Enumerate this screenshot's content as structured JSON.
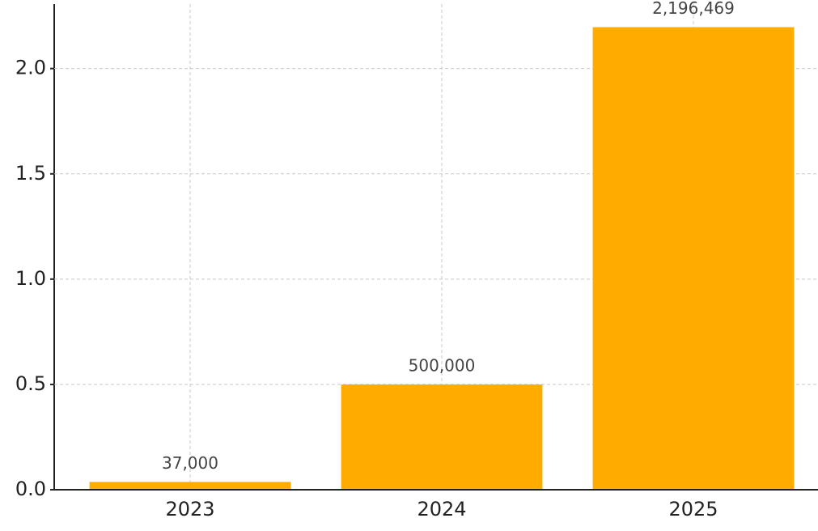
{
  "chart_data": {
    "type": "bar",
    "categories": [
      "2023",
      "2024",
      "2025"
    ],
    "values": [
      37000,
      500000,
      2196469
    ],
    "value_labels": [
      "37,000",
      "500,000",
      "2,196,469"
    ],
    "color": "#ffab00",
    "ylim": [
      0,
      2306292
    ],
    "yticks": [
      {
        "value": 0,
        "label": "0.0"
      },
      {
        "value": 500000,
        "label": "0.5"
      },
      {
        "value": 1000000,
        "label": "1.0"
      },
      {
        "value": 1500000,
        "label": "1.5"
      },
      {
        "value": 2000000,
        "label": "2.0"
      }
    ],
    "grid": true
  }
}
